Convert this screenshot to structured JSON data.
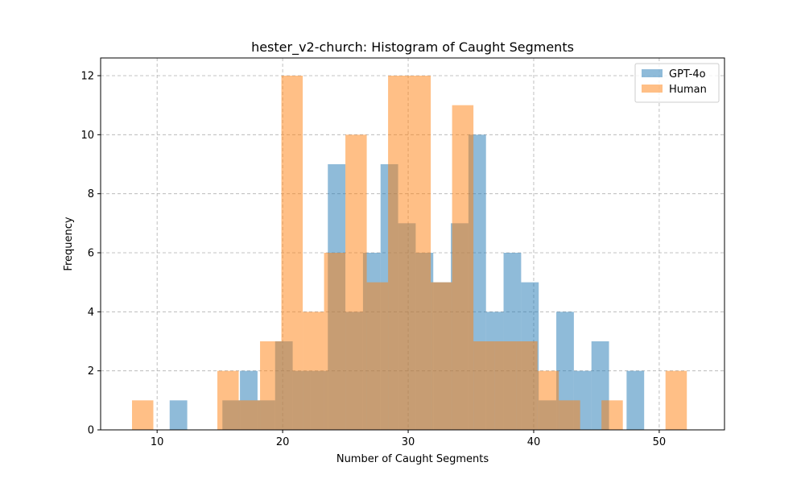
{
  "chart_data": {
    "type": "bar",
    "title": "hester_v2-church: Histogram of Caught Segments",
    "xlabel": "Number of Caught Segments",
    "ylabel": "Frequency",
    "xlim": [
      5.5,
      55.2
    ],
    "ylim": [
      0,
      12.6
    ],
    "xticks": [
      10,
      20,
      30,
      40,
      50
    ],
    "yticks": [
      0,
      2,
      4,
      6,
      8,
      10,
      12
    ],
    "grid": true,
    "legend_position": "top-right",
    "series": [
      {
        "name": "GPT-4o",
        "color": "#1f77b4",
        "opacity": 0.5,
        "bins": [
          {
            "x0": 11.0,
            "x1": 12.4,
            "count": 1
          },
          {
            "x0": 15.2,
            "x1": 16.6,
            "count": 1
          },
          {
            "x0": 16.6,
            "x1": 18.0,
            "count": 2
          },
          {
            "x0": 18.0,
            "x1": 19.4,
            "count": 1
          },
          {
            "x0": 19.4,
            "x1": 20.8,
            "count": 3
          },
          {
            "x0": 20.8,
            "x1": 22.2,
            "count": 2
          },
          {
            "x0": 22.2,
            "x1": 23.6,
            "count": 2
          },
          {
            "x0": 23.6,
            "x1": 25.0,
            "count": 9
          },
          {
            "x0": 25.0,
            "x1": 26.4,
            "count": 4
          },
          {
            "x0": 26.4,
            "x1": 27.8,
            "count": 6
          },
          {
            "x0": 27.8,
            "x1": 29.2,
            "count": 9
          },
          {
            "x0": 29.2,
            "x1": 30.6,
            "count": 7
          },
          {
            "x0": 30.6,
            "x1": 32.0,
            "count": 6
          },
          {
            "x0": 32.0,
            "x1": 33.4,
            "count": 5
          },
          {
            "x0": 33.4,
            "x1": 34.8,
            "count": 7
          },
          {
            "x0": 34.8,
            "x1": 36.2,
            "count": 10
          },
          {
            "x0": 36.2,
            "x1": 37.6,
            "count": 4
          },
          {
            "x0": 37.6,
            "x1": 39.0,
            "count": 6
          },
          {
            "x0": 39.0,
            "x1": 40.4,
            "count": 5
          },
          {
            "x0": 40.4,
            "x1": 41.8,
            "count": 1
          },
          {
            "x0": 41.8,
            "x1": 43.2,
            "count": 4
          },
          {
            "x0": 43.2,
            "x1": 44.6,
            "count": 2
          },
          {
            "x0": 44.6,
            "x1": 46.0,
            "count": 3
          },
          {
            "x0": 47.4,
            "x1": 48.8,
            "count": 2
          }
        ]
      },
      {
        "name": "Human",
        "color": "#ff7f0e",
        "opacity": 0.5,
        "bins": [
          {
            "x0": 8.0,
            "x1": 9.7,
            "count": 1
          },
          {
            "x0": 14.8,
            "x1": 16.5,
            "count": 2
          },
          {
            "x0": 16.5,
            "x1": 18.2,
            "count": 1
          },
          {
            "x0": 18.2,
            "x1": 19.9,
            "count": 3
          },
          {
            "x0": 19.9,
            "x1": 21.6,
            "count": 12
          },
          {
            "x0": 21.6,
            "x1": 23.3,
            "count": 4
          },
          {
            "x0": 23.3,
            "x1": 25.0,
            "count": 6
          },
          {
            "x0": 25.0,
            "x1": 26.7,
            "count": 10
          },
          {
            "x0": 26.7,
            "x1": 28.4,
            "count": 5
          },
          {
            "x0": 28.4,
            "x1": 30.1,
            "count": 12
          },
          {
            "x0": 30.1,
            "x1": 31.8,
            "count": 12
          },
          {
            "x0": 31.8,
            "x1": 33.5,
            "count": 5
          },
          {
            "x0": 33.5,
            "x1": 35.2,
            "count": 11
          },
          {
            "x0": 35.2,
            "x1": 36.9,
            "count": 3
          },
          {
            "x0": 36.9,
            "x1": 38.6,
            "count": 3
          },
          {
            "x0": 38.6,
            "x1": 40.3,
            "count": 3
          },
          {
            "x0": 40.3,
            "x1": 42.0,
            "count": 2
          },
          {
            "x0": 42.0,
            "x1": 43.7,
            "count": 1
          },
          {
            "x0": 43.7,
            "x1": 45.4,
            "count": 0
          },
          {
            "x0": 45.4,
            "x1": 47.1,
            "count": 1
          },
          {
            "x0": 50.5,
            "x1": 52.2,
            "count": 2
          }
        ]
      }
    ]
  }
}
